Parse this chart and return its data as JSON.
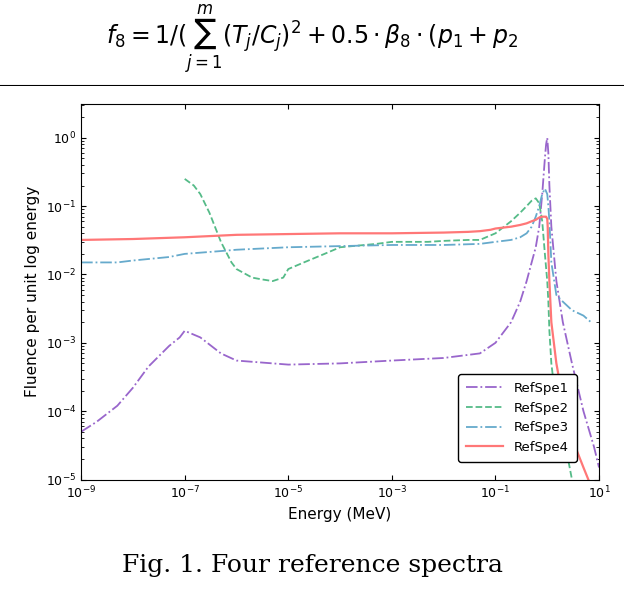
{
  "title": "Fig. 1. Four reference spectra",
  "xlabel": "Energy (MeV)",
  "ylabel": "Fluence per unit log energy",
  "xlim": [
    1e-09,
    10
  ],
  "ylim": [
    1e-05,
    3.16
  ],
  "legend_labels": [
    "RefSpe1",
    "RefSpe2",
    "RefSpe3",
    "RefSpe4"
  ],
  "colors": [
    "#9966CC",
    "#55BB88",
    "#66AACC",
    "#FF7777"
  ],
  "linestyles": [
    "-.",
    "--",
    "-.",
    "-"
  ],
  "linewidths": [
    1.3,
    1.3,
    1.3,
    1.6
  ],
  "background_color": "#ffffff",
  "formula_fontsize": 17,
  "axis_fontsize": 11,
  "title_fontsize": 18
}
